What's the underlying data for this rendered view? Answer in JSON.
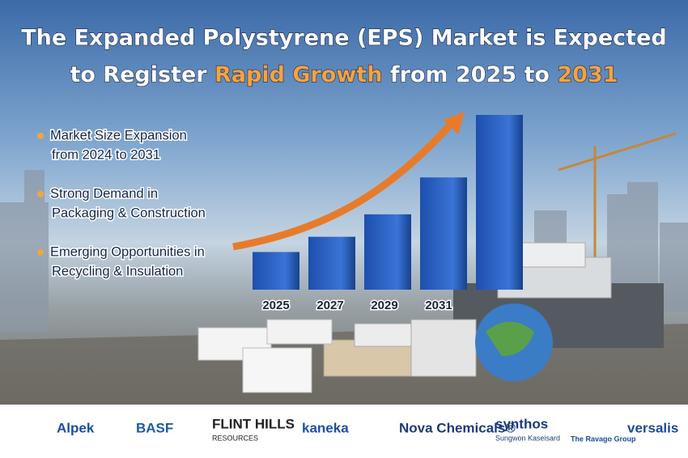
{
  "title": {
    "line1": "The Expanded Polystyrene (EPS) Market is Expected",
    "line2": [
      {
        "text": "to Register ",
        "color": "#ffffff"
      },
      {
        "text": "Rapid Growth",
        "color": "#f4a340"
      },
      {
        "text": " from 2025 to ",
        "color": "#ffffff"
      },
      {
        "text": "2031",
        "color": "#f4a340"
      }
    ]
  },
  "bullets": [
    [
      "Market Size Expansion",
      "from 2024 to 2031"
    ],
    [
      "Strong Demand in",
      "Packaging & Construction"
    ],
    [
      "Emerging Opportunities in",
      "Recycling & Insulation"
    ]
  ],
  "bullet_color": "#f0a640",
  "chart_data": {
    "type": "bar",
    "categories": [
      "2025",
      "2027",
      "2029",
      "2031",
      null
    ],
    "values": [
      47,
      66,
      94,
      140,
      218
    ],
    "ylim": [
      0,
      220
    ]
  },
  "logos": [
    {
      "text": "Alpek",
      "color": "#1c4fa0"
    },
    {
      "text": "BASF",
      "color": "#1c5aa6"
    },
    {
      "text": "FLINT HILLS",
      "sub": "RESOURCES",
      "color": "#222222"
    },
    {
      "text": "kaneka",
      "color": "#1d4fa8"
    },
    {
      "text": "Nova Chemicals®",
      "color": "#1b3c7a"
    },
    {
      "text": "synthos",
      "sub": "Sungwon Kaseisard",
      "color": "#1b3c7a"
    },
    {
      "text": "The Ravago Group",
      "color": "#1b4a9a"
    },
    {
      "text": "versalis",
      "color": "#1b4a9a"
    }
  ]
}
